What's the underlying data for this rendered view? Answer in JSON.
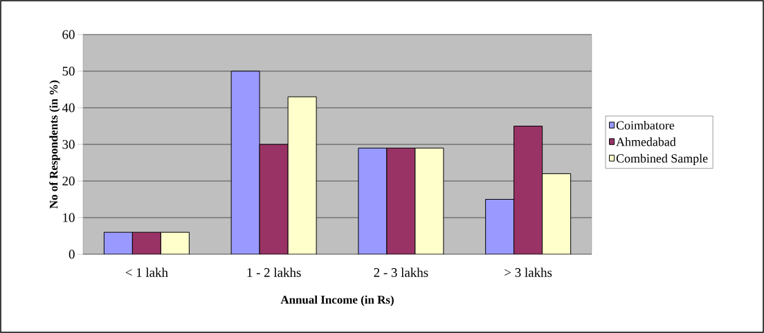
{
  "chart_data": {
    "type": "bar",
    "xlabel": "Annual Income (in Rs)",
    "ylabel": "No of Respondents (in %)",
    "categories": [
      "< 1 lakh",
      "1 - 2 lakhs",
      "2 - 3 lakhs",
      "> 3 lakhs"
    ],
    "series": [
      {
        "name": "Coimbatore",
        "color": "#9999ff",
        "values": [
          6,
          50,
          29,
          15
        ]
      },
      {
        "name": "Ahmedabad",
        "color": "#993366",
        "values": [
          6,
          30,
          29,
          35
        ]
      },
      {
        "name": "Combined Sample",
        "color": "#ffffcc",
        "values": [
          6,
          43,
          29,
          22
        ]
      }
    ],
    "ylim": [
      0,
      60
    ],
    "yticks": [
      0,
      10,
      20,
      30,
      40,
      50,
      60
    ],
    "grid": "y",
    "legend": "right"
  }
}
